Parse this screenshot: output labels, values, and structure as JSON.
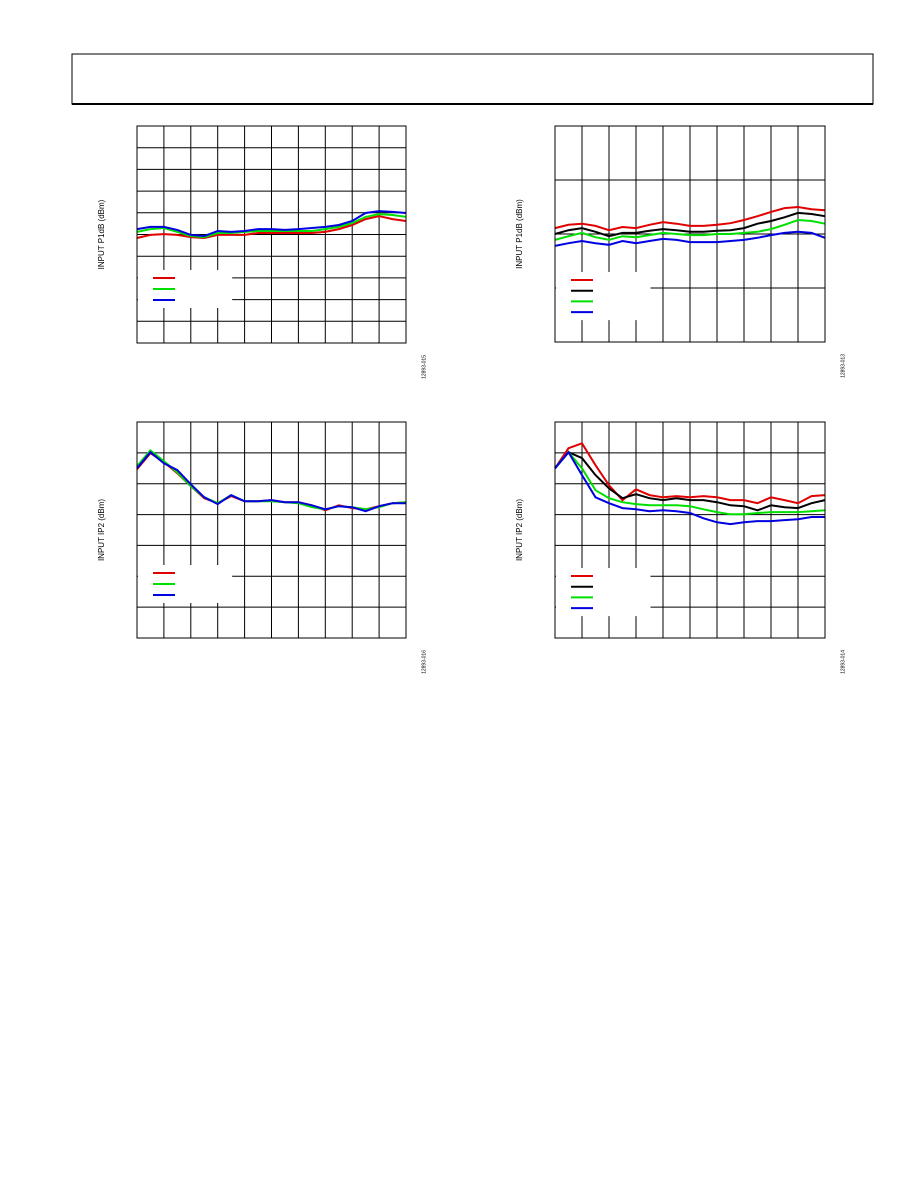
{
  "chart_data": [
    {
      "type": "line",
      "ylabel": "INPUT P1dB (dBm)",
      "figure_id": "12893-015",
      "xlim": [
        0,
        10
      ],
      "ylim": [
        0,
        10
      ],
      "grid_cols": 10,
      "grid_rows": 10,
      "x": [
        0,
        0.5,
        1,
        1.5,
        2,
        2.5,
        3,
        3.5,
        4,
        4.5,
        5,
        5.5,
        6,
        6.5,
        7,
        7.5,
        8,
        8.5,
        9,
        9.5,
        10
      ],
      "series": [
        {
          "color": "#e00000",
          "values": [
            4.84,
            4.98,
            5.02,
            4.98,
            4.88,
            4.84,
            4.98,
            4.98,
            4.98,
            5.07,
            5.07,
            5.07,
            5.07,
            5.07,
            5.12,
            5.25,
            5.44,
            5.71,
            5.85,
            5.71,
            5.62
          ]
        },
        {
          "color": "#00e000",
          "values": [
            5.12,
            5.25,
            5.3,
            5.12,
            4.93,
            4.88,
            5.07,
            5.07,
            5.12,
            5.16,
            5.16,
            5.16,
            5.16,
            5.16,
            5.25,
            5.35,
            5.53,
            5.81,
            5.94,
            5.9,
            5.81
          ]
        },
        {
          "color": "#0000e0",
          "values": [
            5.25,
            5.35,
            5.35,
            5.21,
            4.98,
            4.93,
            5.16,
            5.12,
            5.16,
            5.25,
            5.25,
            5.21,
            5.25,
            5.3,
            5.35,
            5.44,
            5.62,
            5.99,
            6.08,
            6.04,
            5.99
          ]
        }
      ]
    },
    {
      "type": "line",
      "ylabel": "INPUT P1dB (dBm)",
      "figure_id": "12893-013",
      "xlim": [
        0,
        10
      ],
      "ylim": [
        0,
        4
      ],
      "grid_cols": 10,
      "grid_rows": 4,
      "x": [
        0,
        0.5,
        1,
        1.5,
        2,
        2.5,
        3,
        3.5,
        4,
        4.5,
        5,
        5.5,
        6,
        6.5,
        7,
        7.5,
        8,
        8.5,
        9,
        9.5,
        10
      ],
      "series": [
        {
          "color": "#e00000",
          "values": [
            2.11,
            2.17,
            2.19,
            2.15,
            2.07,
            2.13,
            2.11,
            2.17,
            2.22,
            2.19,
            2.15,
            2.15,
            2.17,
            2.2,
            2.26,
            2.33,
            2.41,
            2.48,
            2.5,
            2.46,
            2.44
          ]
        },
        {
          "color": "#000000",
          "values": [
            2.0,
            2.07,
            2.11,
            2.04,
            1.96,
            2.02,
            2.02,
            2.06,
            2.09,
            2.07,
            2.04,
            2.04,
            2.06,
            2.07,
            2.11,
            2.19,
            2.24,
            2.31,
            2.39,
            2.37,
            2.33
          ]
        },
        {
          "color": "#00e000",
          "values": [
            1.89,
            1.96,
            2.02,
            1.94,
            1.89,
            1.96,
            1.94,
            1.98,
            2.02,
            2.0,
            1.98,
            1.98,
            2.0,
            2.0,
            2.02,
            2.04,
            2.09,
            2.17,
            2.26,
            2.24,
            2.19
          ]
        },
        {
          "color": "#0000e0",
          "values": [
            1.78,
            1.83,
            1.87,
            1.83,
            1.8,
            1.87,
            1.83,
            1.87,
            1.91,
            1.89,
            1.85,
            1.85,
            1.85,
            1.87,
            1.89,
            1.93,
            1.98,
            2.02,
            2.04,
            2.02,
            1.93
          ]
        }
      ]
    },
    {
      "type": "line",
      "ylabel": "INPUT IP2 (dBm)",
      "figure_id": "12893-016",
      "xlim": [
        0,
        10
      ],
      "ylim": [
        0,
        7
      ],
      "grid_cols": 10,
      "grid_rows": 7,
      "x": [
        0,
        0.5,
        1,
        1.5,
        2,
        2.5,
        3,
        3.5,
        4,
        4.5,
        5,
        5.5,
        6,
        6.5,
        7,
        7.5,
        8,
        8.5,
        9,
        9.5,
        10
      ],
      "series": [
        {
          "color": "#e00000",
          "values": [
            5.47,
            5.99,
            5.7,
            5.34,
            4.92,
            4.53,
            4.37,
            4.6,
            4.43,
            4.43,
            4.47,
            4.4,
            4.4,
            4.3,
            4.14,
            4.3,
            4.21,
            4.17,
            4.27,
            4.37,
            4.4
          ]
        },
        {
          "color": "#00e000",
          "values": [
            5.57,
            6.08,
            5.73,
            5.37,
            4.92,
            4.56,
            4.37,
            4.63,
            4.43,
            4.43,
            4.43,
            4.4,
            4.37,
            4.24,
            4.17,
            4.27,
            4.24,
            4.17,
            4.24,
            4.37,
            4.4
          ]
        },
        {
          "color": "#0000e0",
          "values": [
            5.5,
            6.02,
            5.66,
            5.44,
            4.98,
            4.56,
            4.34,
            4.63,
            4.43,
            4.43,
            4.47,
            4.4,
            4.4,
            4.3,
            4.17,
            4.27,
            4.24,
            4.11,
            4.27,
            4.37,
            4.37
          ]
        }
      ]
    },
    {
      "type": "line",
      "ylabel": "INPUT IP2 (dBm)",
      "figure_id": "12893-014",
      "xlim": [
        0,
        10
      ],
      "ylim": [
        0,
        7
      ],
      "grid_cols": 10,
      "grid_rows": 7,
      "x": [
        0,
        0.5,
        1,
        1.5,
        2,
        2.5,
        3,
        3.5,
        4,
        4.5,
        5,
        5.5,
        6,
        6.5,
        7,
        7.5,
        8,
        8.5,
        9,
        9.5,
        10
      ],
      "series": [
        {
          "color": "#e00000",
          "values": [
            5.5,
            6.15,
            6.31,
            5.6,
            4.95,
            4.47,
            4.82,
            4.63,
            4.56,
            4.6,
            4.56,
            4.6,
            4.56,
            4.47,
            4.47,
            4.37,
            4.56,
            4.47,
            4.37,
            4.6,
            4.63
          ]
        },
        {
          "color": "#000000",
          "values": [
            5.5,
            6.02,
            5.83,
            5.28,
            4.85,
            4.53,
            4.66,
            4.53,
            4.47,
            4.53,
            4.47,
            4.47,
            4.4,
            4.3,
            4.27,
            4.14,
            4.3,
            4.24,
            4.21,
            4.37,
            4.47
          ]
        },
        {
          "color": "#00e000",
          "values": [
            5.5,
            6.02,
            5.5,
            4.79,
            4.53,
            4.4,
            4.34,
            4.3,
            4.3,
            4.3,
            4.27,
            4.17,
            4.08,
            4.01,
            4.01,
            4.05,
            4.08,
            4.08,
            4.08,
            4.11,
            4.14
          ]
        },
        {
          "color": "#0000e0",
          "values": [
            5.5,
            6.02,
            5.28,
            4.56,
            4.37,
            4.21,
            4.17,
            4.11,
            4.14,
            4.11,
            4.05,
            3.88,
            3.75,
            3.69,
            3.75,
            3.79,
            3.79,
            3.82,
            3.85,
            3.92,
            3.92
          ]
        }
      ]
    }
  ]
}
